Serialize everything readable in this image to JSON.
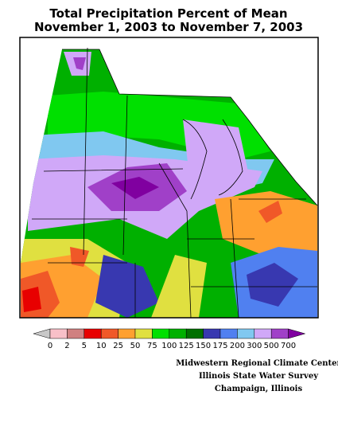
{
  "header": {
    "title": "Total Precipitation Percent of Mean",
    "subtitle": "November 1, 2003 to November 7, 2003"
  },
  "legend": {
    "ticks": [
      0,
      2,
      5,
      10,
      25,
      50,
      75,
      100,
      125,
      150,
      175,
      200,
      300,
      500,
      700
    ],
    "colors": [
      "#c8c8c8",
      "#f8c0c8",
      "#d08080",
      "#e80000",
      "#f05828",
      "#ffa030",
      "#e0e040",
      "#00e000",
      "#00b000",
      "#007000",
      "#3838b0",
      "#5080f0",
      "#80c8f0",
      "#d0a8f8",
      "#a040c8",
      "#8000a0"
    ]
  },
  "credits": [
    "Midwestern Regional Climate Center",
    "Illinois State Water Survey",
    "Champaign, Illinois"
  ]
}
